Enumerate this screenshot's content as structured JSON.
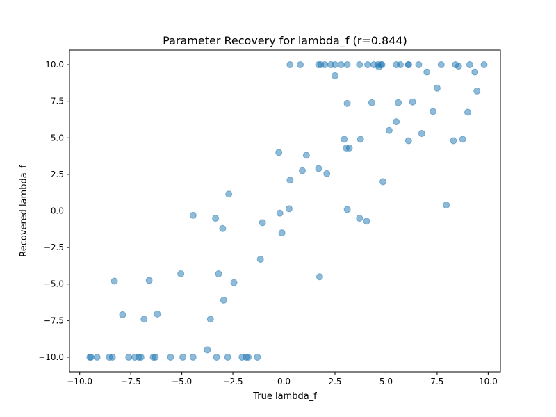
{
  "chart_data": {
    "type": "scatter",
    "title": "Parameter Recovery for lambda_f (r=0.844)",
    "xlabel": "True lambda_f",
    "ylabel": "Recovered lambda_f",
    "xlim": [
      -10.5,
      10.6
    ],
    "ylim": [
      -11.0,
      11.0
    ],
    "xticks": [
      -10.0,
      -7.5,
      -5.0,
      -2.5,
      0.0,
      2.5,
      5.0,
      7.5,
      10.0
    ],
    "xtick_labels": [
      "−10.0",
      "−7.5",
      "−5.0",
      "−2.5",
      "0.0",
      "2.5",
      "5.0",
      "7.5",
      "10.0"
    ],
    "yticks": [
      -10.0,
      -7.5,
      -5.0,
      -2.5,
      0.0,
      2.5,
      5.0,
      7.5,
      10.0
    ],
    "ytick_labels": [
      "−10.0",
      "−7.5",
      "−5.0",
      "−2.5",
      "0.0",
      "2.5",
      "5.0",
      "7.5",
      "10.0"
    ],
    "grid": false,
    "legend": "none",
    "point_color": "#1f77b4",
    "point_opacity": 0.5,
    "points": [
      {
        "x": 0.3,
        "y": 10.0
      },
      {
        "x": 0.8,
        "y": 10.0
      },
      {
        "x": 1.7,
        "y": 10.0
      },
      {
        "x": 1.8,
        "y": 10.0
      },
      {
        "x": 2.0,
        "y": 10.0
      },
      {
        "x": 2.3,
        "y": 10.0
      },
      {
        "x": 2.5,
        "y": 10.0
      },
      {
        "x": 2.8,
        "y": 10.0
      },
      {
        "x": 3.1,
        "y": 10.0
      },
      {
        "x": 3.7,
        "y": 10.0
      },
      {
        "x": 4.1,
        "y": 10.0
      },
      {
        "x": 4.4,
        "y": 10.0
      },
      {
        "x": 4.6,
        "y": 10.0
      },
      {
        "x": 4.65,
        "y": 9.85
      },
      {
        "x": 4.75,
        "y": 10.0
      },
      {
        "x": 4.8,
        "y": 10.0
      },
      {
        "x": 5.5,
        "y": 10.0
      },
      {
        "x": 5.7,
        "y": 10.0
      },
      {
        "x": 6.1,
        "y": 10.0
      },
      {
        "x": 6.1,
        "y": 10.0
      },
      {
        "x": 6.6,
        "y": 10.0
      },
      {
        "x": 7.7,
        "y": 10.0
      },
      {
        "x": 8.4,
        "y": 10.0
      },
      {
        "x": 8.55,
        "y": 9.9
      },
      {
        "x": 9.1,
        "y": 10.0
      },
      {
        "x": 9.8,
        "y": 10.0
      },
      {
        "x": 2.5,
        "y": 9.25
      },
      {
        "x": 7.0,
        "y": 9.5
      },
      {
        "x": 9.35,
        "y": 9.5
      },
      {
        "x": 7.5,
        "y": 8.4
      },
      {
        "x": 9.45,
        "y": 8.2
      },
      {
        "x": 3.1,
        "y": 7.35
      },
      {
        "x": 4.3,
        "y": 7.4
      },
      {
        "x": 5.6,
        "y": 7.4
      },
      {
        "x": 6.3,
        "y": 7.45
      },
      {
        "x": 7.3,
        "y": 6.8
      },
      {
        "x": 9.0,
        "y": 6.75
      },
      {
        "x": 5.5,
        "y": 6.1
      },
      {
        "x": 5.15,
        "y": 5.5
      },
      {
        "x": 6.75,
        "y": 5.3
      },
      {
        "x": 2.95,
        "y": 4.9
      },
      {
        "x": 3.75,
        "y": 4.9
      },
      {
        "x": 6.1,
        "y": 4.8
      },
      {
        "x": 8.3,
        "y": 4.8
      },
      {
        "x": 8.75,
        "y": 4.9
      },
      {
        "x": 3.05,
        "y": 4.3
      },
      {
        "x": 3.2,
        "y": 4.3
      },
      {
        "x": -0.25,
        "y": 4.0
      },
      {
        "x": 1.1,
        "y": 3.8
      },
      {
        "x": 1.7,
        "y": 2.9
      },
      {
        "x": 0.9,
        "y": 2.75
      },
      {
        "x": 2.1,
        "y": 2.55
      },
      {
        "x": 0.3,
        "y": 2.1
      },
      {
        "x": 4.85,
        "y": 2.0
      },
      {
        "x": -2.7,
        "y": 1.15
      },
      {
        "x": 7.95,
        "y": 0.4
      },
      {
        "x": 0.25,
        "y": 0.15
      },
      {
        "x": 3.1,
        "y": 0.1
      },
      {
        "x": -0.2,
        "y": -0.15
      },
      {
        "x": -4.45,
        "y": -0.3
      },
      {
        "x": -3.35,
        "y": -0.5
      },
      {
        "x": 3.7,
        "y": -0.5
      },
      {
        "x": 4.05,
        "y": -0.7
      },
      {
        "x": -1.05,
        "y": -0.8
      },
      {
        "x": -3.0,
        "y": -1.2
      },
      {
        "x": -0.1,
        "y": -1.5
      },
      {
        "x": -1.15,
        "y": -3.3
      },
      {
        "x": -5.05,
        "y": -4.3
      },
      {
        "x": -3.2,
        "y": -4.3
      },
      {
        "x": 1.75,
        "y": -4.5
      },
      {
        "x": -8.3,
        "y": -4.8
      },
      {
        "x": -6.6,
        "y": -4.75
      },
      {
        "x": -2.45,
        "y": -4.9
      },
      {
        "x": -2.95,
        "y": -6.1
      },
      {
        "x": -7.9,
        "y": -7.1
      },
      {
        "x": -6.2,
        "y": -7.05
      },
      {
        "x": -6.85,
        "y": -7.4
      },
      {
        "x": -3.6,
        "y": -7.4
      },
      {
        "x": -3.75,
        "y": -9.5
      },
      {
        "x": -9.5,
        "y": -10.0
      },
      {
        "x": -9.45,
        "y": -10.0
      },
      {
        "x": -9.15,
        "y": -10.0
      },
      {
        "x": -8.55,
        "y": -10.0
      },
      {
        "x": -8.4,
        "y": -10.0
      },
      {
        "x": -7.6,
        "y": -10.0
      },
      {
        "x": -7.3,
        "y": -10.0
      },
      {
        "x": -7.1,
        "y": -10.0
      },
      {
        "x": -7.0,
        "y": -10.0
      },
      {
        "x": -6.4,
        "y": -10.0
      },
      {
        "x": -6.3,
        "y": -10.0
      },
      {
        "x": -5.55,
        "y": -10.0
      },
      {
        "x": -4.95,
        "y": -10.0
      },
      {
        "x": -4.45,
        "y": -10.0
      },
      {
        "x": -3.3,
        "y": -10.0
      },
      {
        "x": -2.75,
        "y": -10.0
      },
      {
        "x": -2.05,
        "y": -10.0
      },
      {
        "x": -1.85,
        "y": -10.0
      },
      {
        "x": -1.75,
        "y": -10.0
      },
      {
        "x": -1.3,
        "y": -10.0
      }
    ]
  }
}
